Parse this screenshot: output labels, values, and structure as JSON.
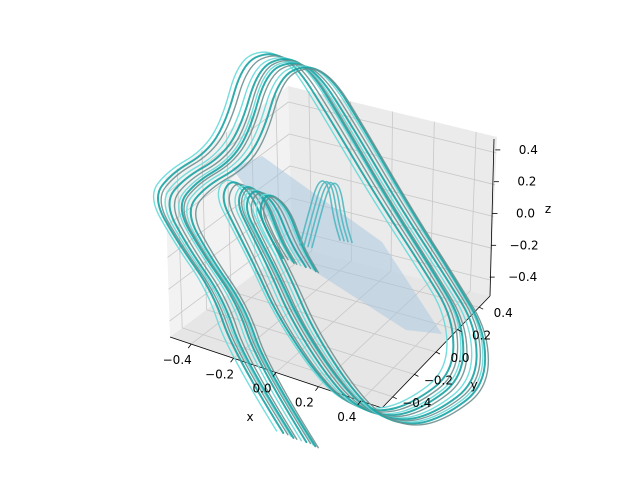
{
  "chart_data": {
    "type": "3d-streamlines",
    "title": "",
    "xlabel": "x",
    "ylabel": "y",
    "zlabel": "z",
    "xlim": [
      -0.5,
      0.5
    ],
    "ylim": [
      -0.5,
      0.5
    ],
    "zlim": [
      -0.5,
      0.5
    ],
    "xticks": [
      "−0.4",
      "−0.2",
      "0.0",
      "0.2",
      "0.4"
    ],
    "yticks": [
      "−0.4",
      "−0.2",
      "0.0",
      "0.2",
      "0.4"
    ],
    "zticks": [
      "−0.4",
      "−0.2",
      "0.0",
      "0.2",
      "0.4"
    ],
    "grid": true,
    "plane": {
      "description": "translucent light-blue separatrix plane",
      "color": "#a7c6e0"
    },
    "series": [
      {
        "name": "streamlines-cyan",
        "color": "#66d9d9"
      },
      {
        "name": "streamlines-teal",
        "color": "#1aa3a3"
      },
      {
        "name": "streamlines-grey",
        "color": "#6f8f8f"
      },
      {
        "name": "inner-loop",
        "color": "#4fb8c0"
      }
    ]
  }
}
